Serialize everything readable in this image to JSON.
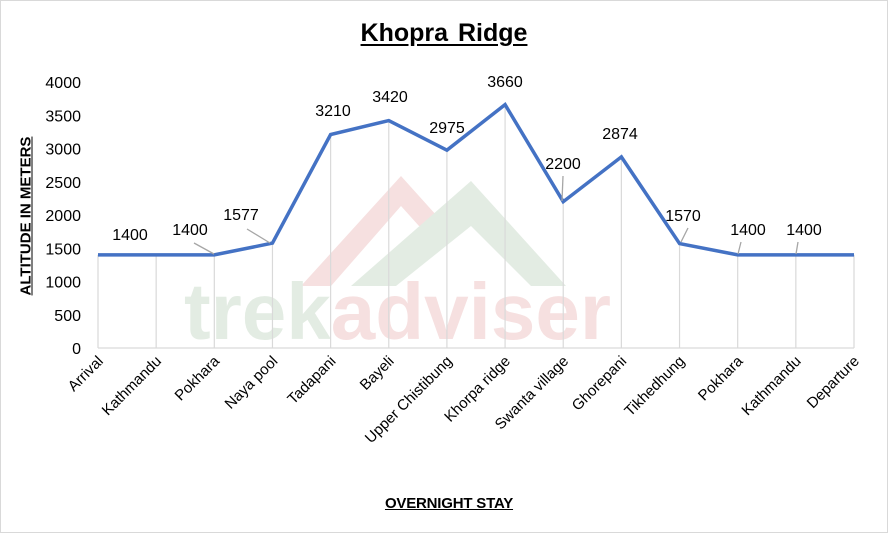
{
  "chart_data": {
    "type": "line",
    "title": "Khopra  Ridge",
    "xlabel": "OVERNIGHT STAY",
    "ylabel": "ALTITUDE IN METERS",
    "ylim": [
      0,
      4000
    ],
    "y_ticks": [
      0,
      500,
      1000,
      1500,
      2000,
      2500,
      3000,
      3500,
      4000
    ],
    "grid": "vertical gridlines at each category",
    "legend": "none",
    "categories": [
      "Arrival",
      "Kathmandu",
      "Pokhara",
      "Naya pool",
      "Tadapani",
      "Bayeli",
      "Upper Chistibung",
      "Khorpa ridge",
      "Swanta village",
      "Ghorepani",
      "Tikhedhung",
      "Pokhara",
      "Kathmandu",
      "Departure"
    ],
    "series": [
      {
        "name": "Altitude",
        "color": "#4472c4",
        "values": [
          1400,
          1400,
          1400,
          1577,
          3210,
          3420,
          2975,
          3660,
          2200,
          2874,
          1570,
          1400,
          1400,
          1400
        ]
      }
    ],
    "data_labels": [
      {
        "text": "1400",
        "index": 1
      },
      {
        "text": "1400",
        "index": 2
      },
      {
        "text": "1577",
        "index": 3
      },
      {
        "text": "3210",
        "index": 4
      },
      {
        "text": "3420",
        "index": 5
      },
      {
        "text": "2975",
        "index": 6
      },
      {
        "text": "3660",
        "index": 7
      },
      {
        "text": "2200",
        "index": 8
      },
      {
        "text": "2874",
        "index": 9
      },
      {
        "text": "1570",
        "index": 10
      },
      {
        "text": "1400",
        "index": 11
      },
      {
        "text": "1400",
        "index": 12
      }
    ],
    "watermark": {
      "part1": "trek",
      "part2": "adviser",
      "color1": "#e3ece3",
      "color2": "#f6e0e0"
    }
  },
  "colors": {
    "line": "#4472c4",
    "gridline": "#d9d9d9",
    "leader": "#a6a6a6",
    "border": "#d9d9d9"
  }
}
